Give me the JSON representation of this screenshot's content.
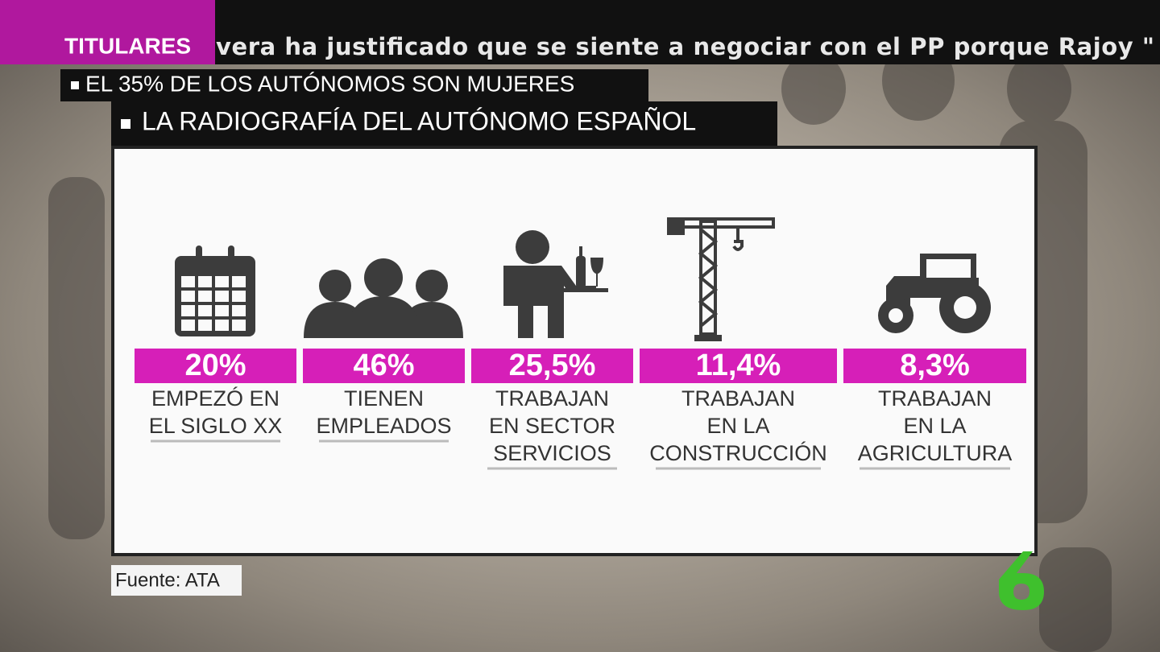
{
  "ticker": {
    "label": "TITULARES",
    "text": "vera ha justificado que se siente a negociar con el PP porque Rajoy \""
  },
  "headlines": [
    "EL 35% DE LOS AUTÓNOMOS SON MUJERES",
    "LA RADIOGRAFÍA DEL AUTÓNOMO ESPAÑOL"
  ],
  "items": [
    {
      "value": "20%",
      "lines": [
        "EMPEZÓ EN",
        "EL SIGLO XX"
      ]
    },
    {
      "value": "46%",
      "lines": [
        "TIENEN",
        "EMPLEADOS"
      ]
    },
    {
      "value": "25,5%",
      "lines": [
        "TRABAJAN",
        "EN SECTOR",
        "SERVICIOS"
      ]
    },
    {
      "value": "11,4%",
      "lines": [
        "TRABAJAN",
        "EN LA",
        "CONSTRUCCIÓN"
      ]
    },
    {
      "value": "8,3%",
      "lines": [
        "TRABAJAN",
        "EN LA",
        "AGRICULTURA"
      ]
    }
  ],
  "source": "Fuente: ATA"
}
